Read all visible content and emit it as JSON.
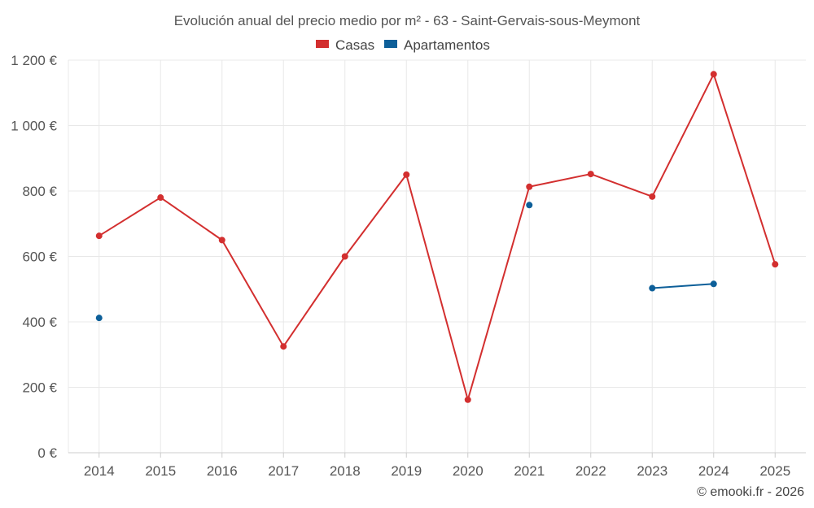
{
  "chart_data": {
    "type": "line",
    "title": "Evolución anual del precio medio por m² - 63 - Saint-Gervais-sous-Meymont",
    "xlabel": "",
    "ylabel": "",
    "categories": [
      "2014",
      "2015",
      "2016",
      "2017",
      "2018",
      "2019",
      "2020",
      "2021",
      "2022",
      "2023",
      "2024",
      "2025"
    ],
    "ylim": [
      0,
      1200
    ],
    "yticks": [
      0,
      200,
      400,
      600,
      800,
      1000,
      1200
    ],
    "ytick_labels": [
      "0 €",
      "200 €",
      "400 €",
      "600 €",
      "800 €",
      "1 000 €",
      "1 200 €"
    ],
    "grid": true,
    "legend_position": "top-center",
    "series": [
      {
        "name": "Casas",
        "color": "#d32f2f",
        "values": [
          663,
          780,
          650,
          325,
          600,
          850,
          162,
          813,
          852,
          783,
          1157,
          576
        ]
      },
      {
        "name": "Apartamentos",
        "color": "#0d5f99",
        "values": [
          412,
          null,
          null,
          null,
          null,
          null,
          null,
          757,
          null,
          503,
          516,
          null
        ]
      }
    ]
  },
  "credit": "© emooki.fr - 2026"
}
